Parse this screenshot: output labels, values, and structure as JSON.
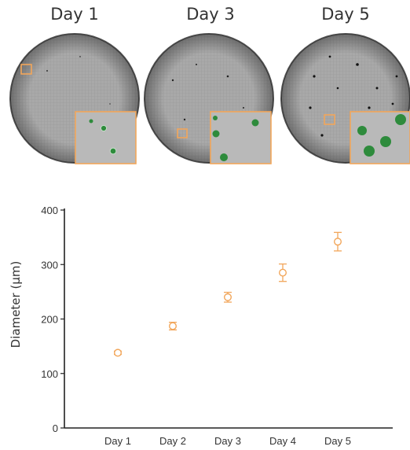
{
  "panels": {
    "titles": [
      "Day 1",
      "Day 3",
      "Day 5"
    ]
  },
  "colors": {
    "marker": "#f2a65a",
    "dish_fill": "#a6a6a6",
    "colony": "#2e8b3c",
    "axis": "#222222"
  },
  "chart_data": {
    "type": "scatter",
    "categories": [
      "Day 1",
      "Day 2",
      "Day 3",
      "Day 4",
      "Day 5"
    ],
    "values": [
      138,
      187,
      240,
      285,
      342
    ],
    "errors": [
      3,
      7,
      9,
      16,
      17
    ],
    "title": "",
    "xlabel": "",
    "ylabel": "Diameter (µm)",
    "ylim": [
      0,
      400
    ],
    "yticks": [
      0,
      100,
      200,
      300,
      400
    ],
    "grid": false,
    "legend": "none"
  }
}
